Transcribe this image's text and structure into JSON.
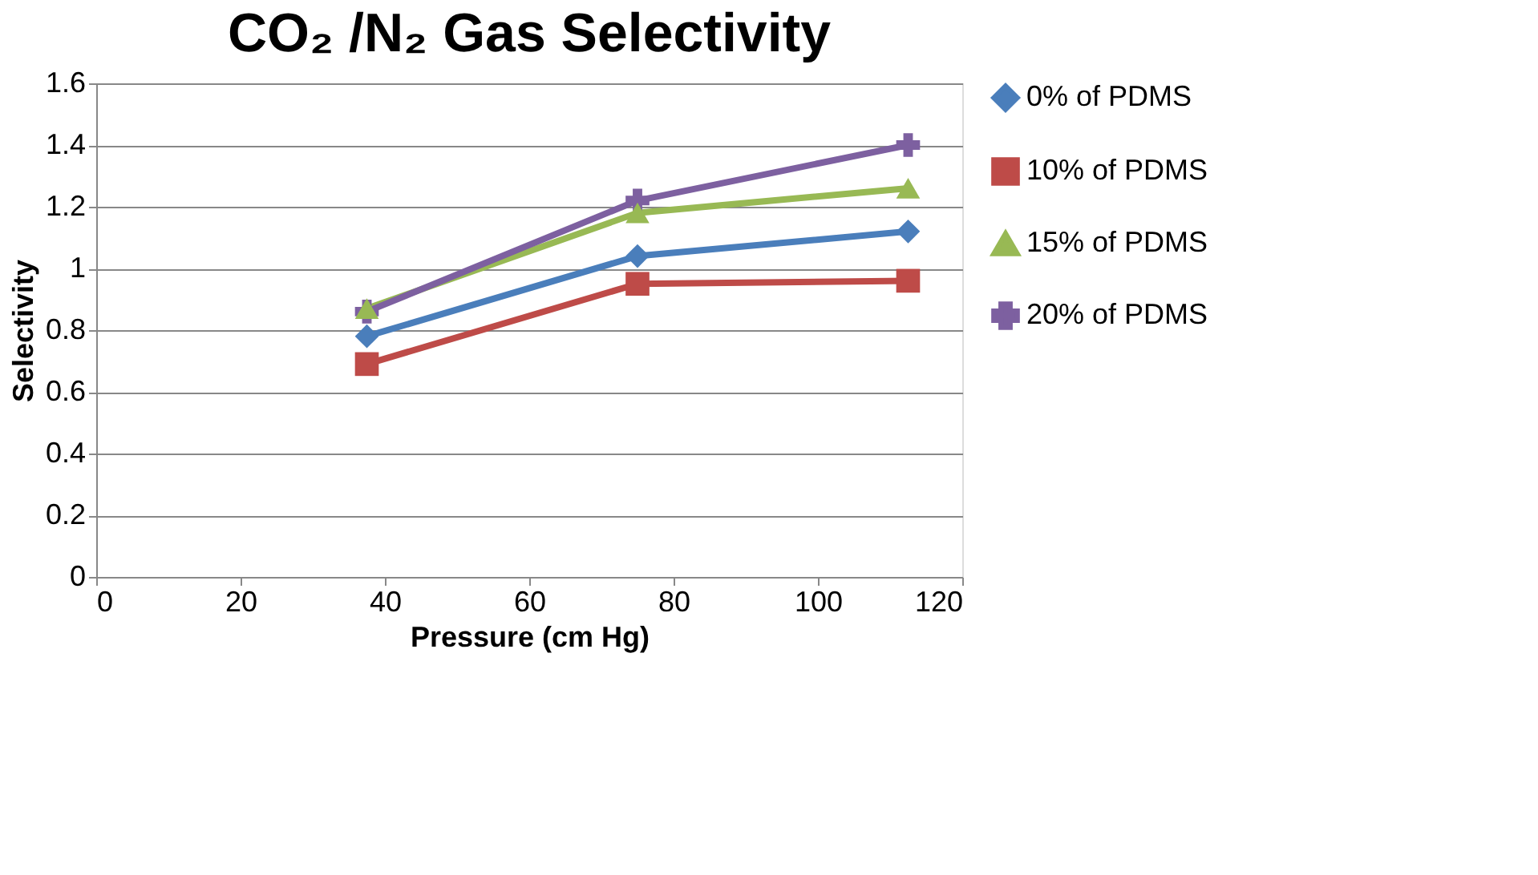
{
  "chart_data": {
    "type": "line",
    "title": "CO₂ /N₂ Gas Selectivity",
    "xlabel": "Pressure (cm Hg)",
    "ylabel": "Selectivity",
    "x": [
      37.5,
      75,
      112.5
    ],
    "series": [
      {
        "name": "0% of PDMS",
        "color": "#4a7ebb",
        "marker": "diamond",
        "values": [
          0.78,
          1.04,
          1.12
        ]
      },
      {
        "name": "10% of PDMS",
        "color": "#be4b48",
        "marker": "square",
        "values": [
          0.69,
          0.95,
          0.96
        ]
      },
      {
        "name": "15% of PDMS",
        "color": "#98b954",
        "marker": "triangle",
        "values": [
          0.87,
          1.18,
          1.26
        ]
      },
      {
        "name": "20% of PDMS",
        "color": "#7d60a0",
        "marker": "cross",
        "values": [
          0.86,
          1.22,
          1.4
        ]
      }
    ],
    "xlim": [
      0,
      120
    ],
    "xticks": [
      0,
      20,
      40,
      60,
      80,
      100,
      120
    ],
    "ylim": [
      0,
      1.6
    ],
    "yticks": [
      0,
      0.2,
      0.4,
      0.6,
      0.8,
      1,
      1.2,
      1.4,
      1.6
    ],
    "grid": "y",
    "legend": "right",
    "line_style": "solid"
  }
}
